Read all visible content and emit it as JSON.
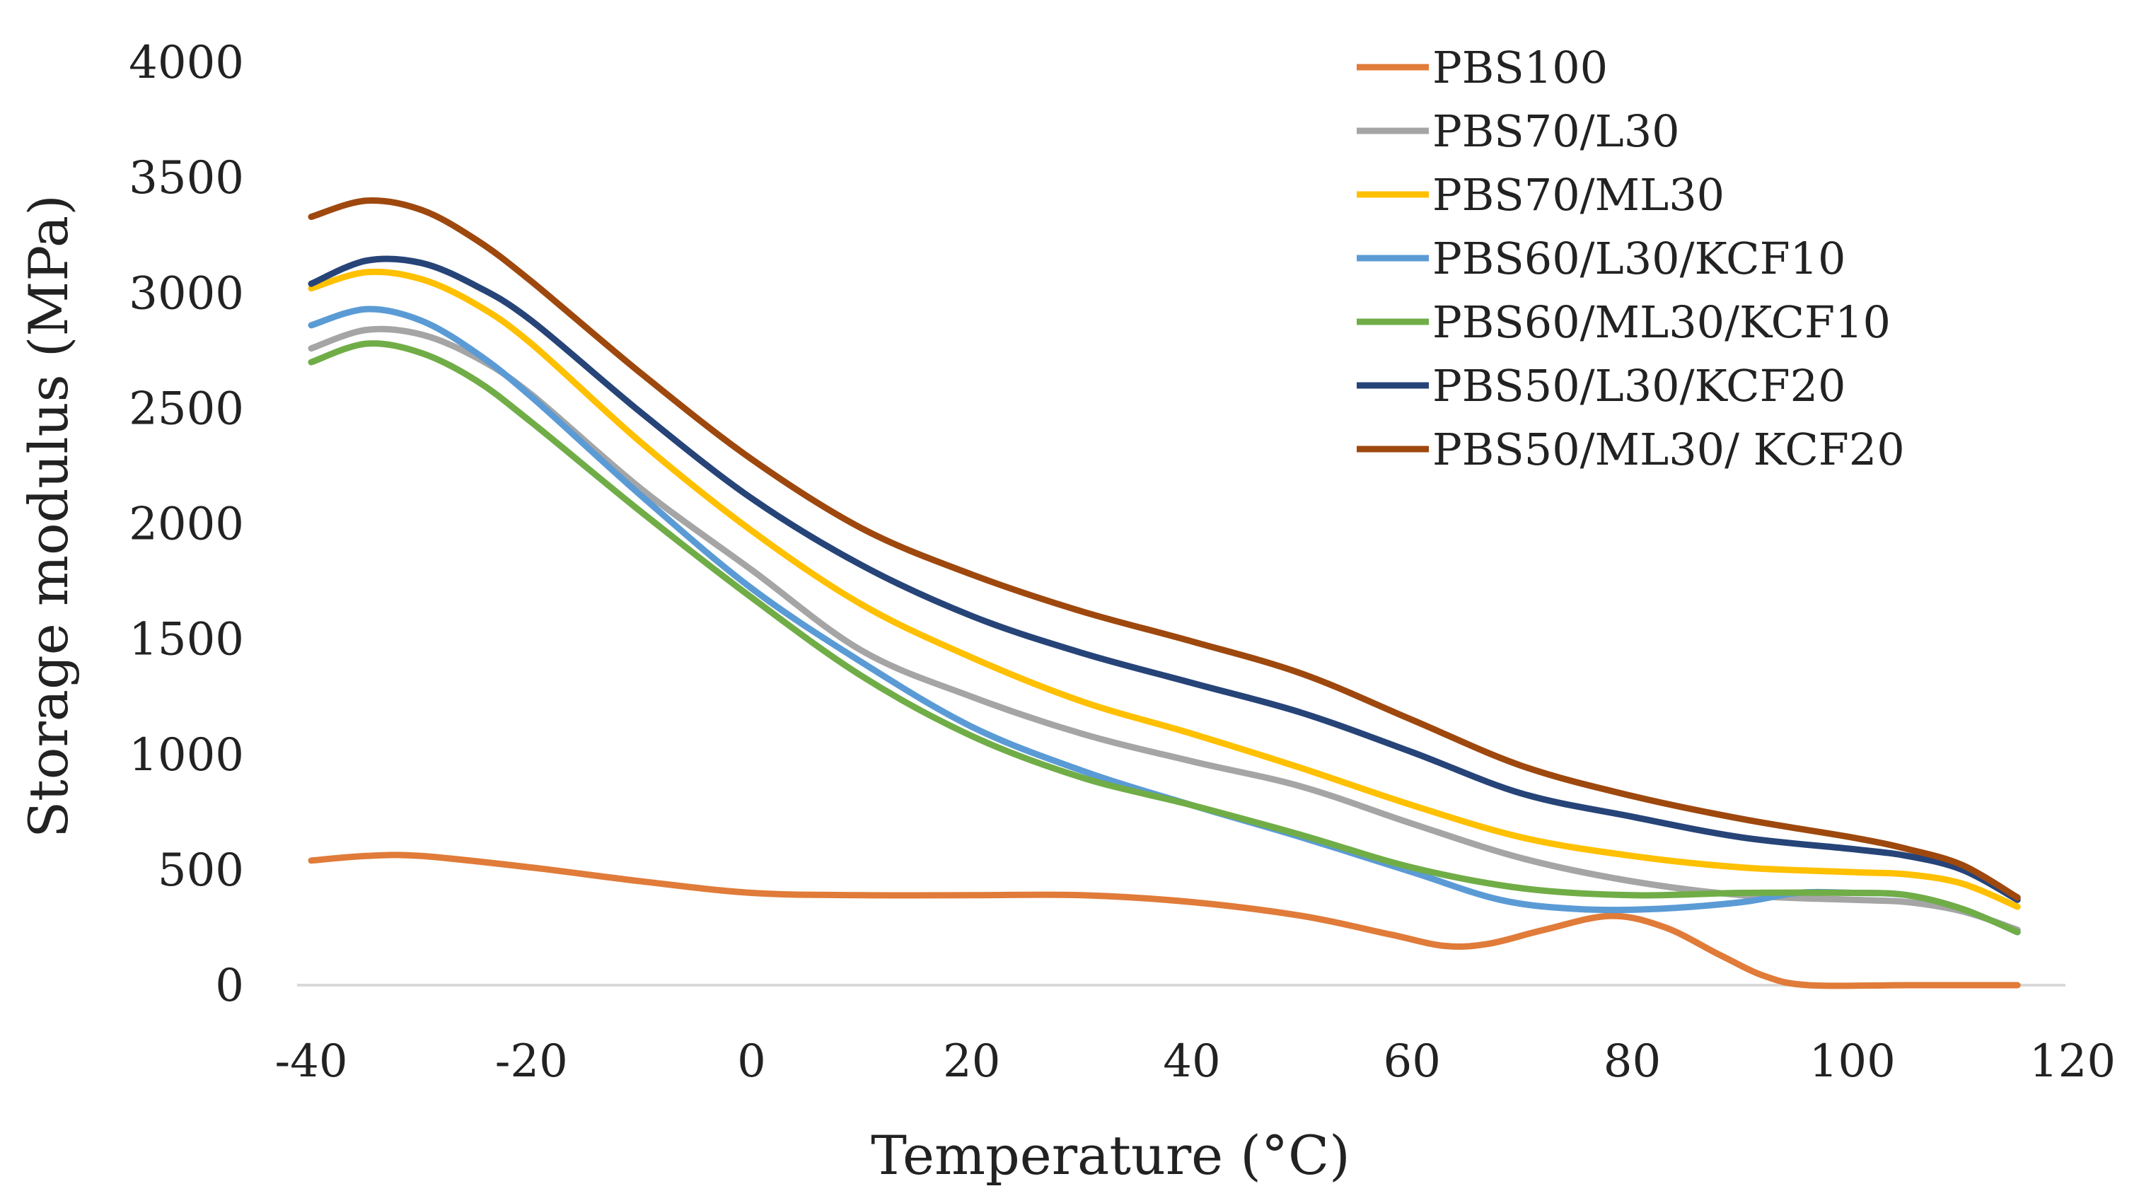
{
  "chart_data": {
    "type": "line",
    "title": "",
    "xlabel": "Temperature (°C)",
    "ylabel": "Storage modulus (MPa)",
    "xlim": [
      -40,
      120
    ],
    "ylim": [
      0,
      4000
    ],
    "xticks": [
      -40,
      -20,
      0,
      20,
      40,
      60,
      80,
      100,
      120
    ],
    "yticks": [
      0,
      500,
      1000,
      1500,
      2000,
      2500,
      3000,
      3500,
      4000
    ],
    "xtick_labels": [
      "-40",
      "-20",
      "0",
      "20",
      "40",
      "60",
      "80",
      "100",
      "120"
    ],
    "ytick_labels": [
      "0",
      "500",
      "1000",
      "1500",
      "2000",
      "2500",
      "3000",
      "3500",
      "4000"
    ],
    "grid": false,
    "legend_position": "top-right",
    "series": [
      {
        "name": "PBS100",
        "color": "#E07B39",
        "points": [
          [
            -40,
            540
          ],
          [
            -35,
            560
          ],
          [
            -30,
            560
          ],
          [
            -20,
            510
          ],
          [
            -10,
            450
          ],
          [
            0,
            400
          ],
          [
            10,
            390
          ],
          [
            20,
            390
          ],
          [
            30,
            390
          ],
          [
            40,
            360
          ],
          [
            50,
            300
          ],
          [
            58,
            220
          ],
          [
            63,
            170
          ],
          [
            67,
            180
          ],
          [
            72,
            240
          ],
          [
            78,
            300
          ],
          [
            83,
            250
          ],
          [
            88,
            130
          ],
          [
            92,
            40
          ],
          [
            96,
            0
          ],
          [
            105,
            0
          ],
          [
            115,
            0
          ]
        ]
      },
      {
        "name": "PBS70/L30",
        "color": "#A5A5A5",
        "points": [
          [
            -40,
            2760
          ],
          [
            -35,
            2840
          ],
          [
            -30,
            2820
          ],
          [
            -25,
            2720
          ],
          [
            -20,
            2560
          ],
          [
            -10,
            2150
          ],
          [
            0,
            1800
          ],
          [
            10,
            1450
          ],
          [
            20,
            1250
          ],
          [
            30,
            1090
          ],
          [
            40,
            970
          ],
          [
            50,
            860
          ],
          [
            60,
            700
          ],
          [
            70,
            550
          ],
          [
            80,
            450
          ],
          [
            90,
            390
          ],
          [
            100,
            370
          ],
          [
            105,
            360
          ],
          [
            110,
            320
          ],
          [
            115,
            240
          ]
        ]
      },
      {
        "name": "PBS70/ML30",
        "color": "#FFC000",
        "points": [
          [
            -40,
            3020
          ],
          [
            -35,
            3090
          ],
          [
            -30,
            3060
          ],
          [
            -25,
            2950
          ],
          [
            -20,
            2780
          ],
          [
            -10,
            2350
          ],
          [
            0,
            1970
          ],
          [
            10,
            1650
          ],
          [
            20,
            1420
          ],
          [
            30,
            1230
          ],
          [
            40,
            1090
          ],
          [
            50,
            940
          ],
          [
            60,
            780
          ],
          [
            70,
            640
          ],
          [
            80,
            560
          ],
          [
            90,
            510
          ],
          [
            100,
            490
          ],
          [
            105,
            480
          ],
          [
            110,
            440
          ],
          [
            115,
            340
          ]
        ]
      },
      {
        "name": "PBS60/L30/KCF10",
        "color": "#5B9BD5",
        "points": [
          [
            -40,
            2860
          ],
          [
            -35,
            2930
          ],
          [
            -30,
            2880
          ],
          [
            -25,
            2740
          ],
          [
            -20,
            2550
          ],
          [
            -10,
            2120
          ],
          [
            0,
            1720
          ],
          [
            10,
            1400
          ],
          [
            20,
            1120
          ],
          [
            30,
            930
          ],
          [
            40,
            780
          ],
          [
            50,
            640
          ],
          [
            60,
            490
          ],
          [
            68,
            370
          ],
          [
            75,
            330
          ],
          [
            82,
            330
          ],
          [
            90,
            360
          ],
          [
            95,
            400
          ],
          [
            100,
            400
          ],
          [
            105,
            390
          ],
          [
            110,
            330
          ],
          [
            115,
            230
          ]
        ]
      },
      {
        "name": "PBS60/ML30/KCF10",
        "color": "#70AD47",
        "points": [
          [
            -40,
            2700
          ],
          [
            -35,
            2780
          ],
          [
            -30,
            2740
          ],
          [
            -25,
            2620
          ],
          [
            -20,
            2440
          ],
          [
            -10,
            2050
          ],
          [
            0,
            1680
          ],
          [
            10,
            1340
          ],
          [
            20,
            1080
          ],
          [
            30,
            900
          ],
          [
            40,
            780
          ],
          [
            50,
            650
          ],
          [
            60,
            510
          ],
          [
            70,
            420
          ],
          [
            80,
            390
          ],
          [
            90,
            400
          ],
          [
            100,
            400
          ],
          [
            105,
            390
          ],
          [
            110,
            330
          ],
          [
            115,
            230
          ]
        ]
      },
      {
        "name": "PBS50/L30/KCF20",
        "color": "#264478",
        "points": [
          [
            -40,
            3040
          ],
          [
            -35,
            3140
          ],
          [
            -30,
            3130
          ],
          [
            -25,
            3030
          ],
          [
            -20,
            2880
          ],
          [
            -10,
            2480
          ],
          [
            0,
            2110
          ],
          [
            10,
            1820
          ],
          [
            20,
            1600
          ],
          [
            30,
            1440
          ],
          [
            40,
            1310
          ],
          [
            50,
            1180
          ],
          [
            60,
            1010
          ],
          [
            70,
            830
          ],
          [
            80,
            730
          ],
          [
            90,
            640
          ],
          [
            100,
            590
          ],
          [
            105,
            560
          ],
          [
            110,
            500
          ],
          [
            115,
            370
          ]
        ]
      },
      {
        "name": "PBS50/ML30/ KCF20",
        "color": "#9E480E",
        "points": [
          [
            -40,
            3330
          ],
          [
            -35,
            3400
          ],
          [
            -30,
            3360
          ],
          [
            -25,
            3230
          ],
          [
            -20,
            3050
          ],
          [
            -10,
            2650
          ],
          [
            0,
            2280
          ],
          [
            10,
            1980
          ],
          [
            20,
            1780
          ],
          [
            30,
            1620
          ],
          [
            40,
            1490
          ],
          [
            50,
            1350
          ],
          [
            60,
            1150
          ],
          [
            70,
            950
          ],
          [
            80,
            820
          ],
          [
            90,
            720
          ],
          [
            100,
            640
          ],
          [
            105,
            590
          ],
          [
            110,
            520
          ],
          [
            115,
            380
          ]
        ]
      }
    ]
  }
}
